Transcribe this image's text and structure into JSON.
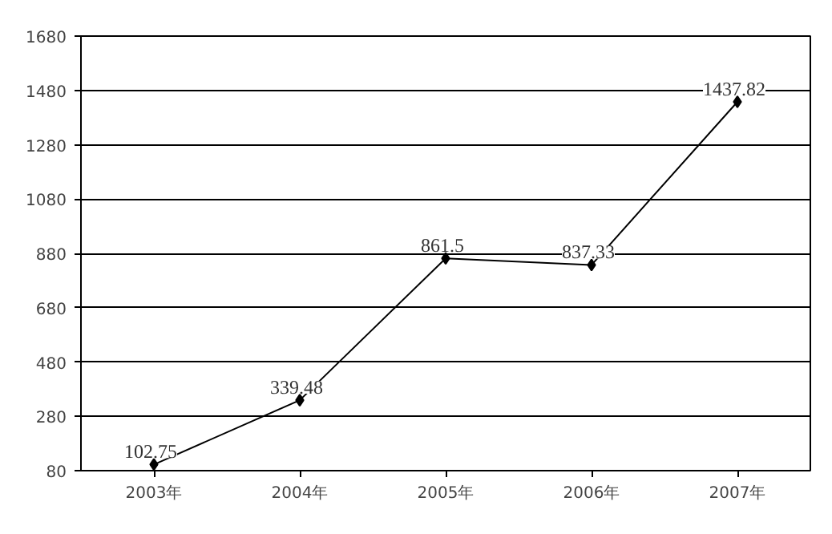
{
  "chart_data": {
    "type": "line",
    "categories": [
      "2003年",
      "2004年",
      "2005年",
      "2006年",
      "2007年"
    ],
    "series": [
      {
        "color": "#000000",
        "values": [
          102.75,
          339.48,
          861.5,
          837.33,
          1437.82
        ]
      }
    ],
    "ylim": [
      80,
      1680
    ],
    "yticks": [
      80,
      280,
      480,
      680,
      880,
      1080,
      1280,
      1480,
      1680
    ],
    "grid": "y",
    "marker": "diamond",
    "line_style": "solid",
    "data_labels": true
  }
}
